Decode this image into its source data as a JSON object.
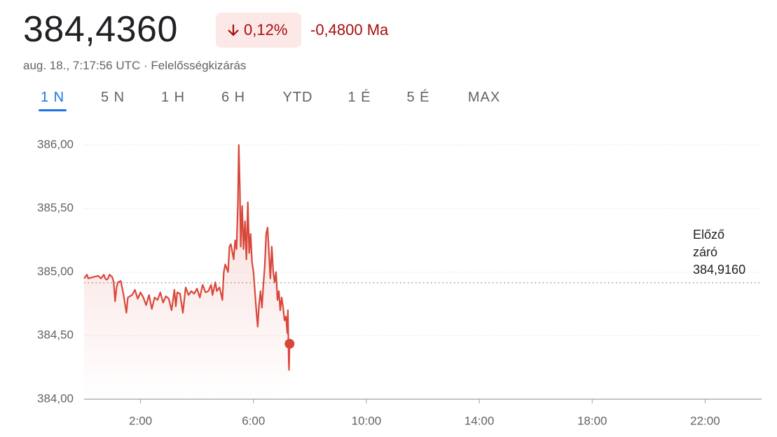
{
  "header": {
    "price": "384,4360",
    "change_percent": "0,12%",
    "change": "-0,4800 Ma",
    "subtitle": "aug. 18., 7:17:56 UTC · Felelősségkizárás"
  },
  "tabs": {
    "items": [
      "1 N",
      "5 N",
      "1 H",
      "6 H",
      "YTD",
      "1 É",
      "5 É",
      "MAX"
    ],
    "active": 0
  },
  "chart_data": {
    "type": "line",
    "xlim": [
      0,
      24
    ],
    "xticks": [
      {
        "value": 2,
        "label": "2:00"
      },
      {
        "value": 6,
        "label": "6:00"
      },
      {
        "value": 10,
        "label": "10:00"
      },
      {
        "value": 14,
        "label": "14:00"
      },
      {
        "value": 18,
        "label": "18:00"
      },
      {
        "value": 22,
        "label": "22:00"
      }
    ],
    "ylim": [
      384,
      386
    ],
    "yticks": [
      {
        "value": 384,
        "label": "384,00"
      },
      {
        "value": 384.5,
        "label": "384,50"
      },
      {
        "value": 385,
        "label": "385,00"
      },
      {
        "value": 385.5,
        "label": "385,50"
      },
      {
        "value": 386,
        "label": "386,00"
      }
    ],
    "grid": true,
    "reference": {
      "title": "Előző záró",
      "value": 384.916,
      "label": "384,9160"
    },
    "last_point_marker": true,
    "series": [
      {
        "color": "#d9473a",
        "x": [
          0.0,
          0.1,
          0.15,
          0.3,
          0.5,
          0.6,
          0.7,
          0.75,
          0.8,
          0.85,
          0.9,
          1.0,
          1.05,
          1.1,
          1.15,
          1.2,
          1.3,
          1.4,
          1.5,
          1.55,
          1.7,
          1.8,
          1.9,
          2.0,
          2.1,
          2.2,
          2.3,
          2.4,
          2.5,
          2.6,
          2.7,
          2.8,
          2.9,
          3.0,
          3.1,
          3.2,
          3.25,
          3.3,
          3.4,
          3.5,
          3.55,
          3.6,
          3.7,
          3.8,
          3.9,
          4.0,
          4.1,
          4.2,
          4.3,
          4.4,
          4.5,
          4.55,
          4.65,
          4.7,
          4.8,
          4.9,
          4.95,
          5.0,
          5.1,
          5.15,
          5.2,
          5.3,
          5.35,
          5.4,
          5.45,
          5.48,
          5.52,
          5.55,
          5.6,
          5.65,
          5.7,
          5.75,
          5.8,
          5.85,
          5.9,
          5.95,
          6.0,
          6.05,
          6.1,
          6.15,
          6.2,
          6.25,
          6.3,
          6.35,
          6.4,
          6.45,
          6.5,
          6.55,
          6.6,
          6.65,
          6.7,
          6.75,
          6.8,
          6.85,
          6.9,
          6.95,
          7.0,
          7.05,
          7.1,
          7.15,
          7.2,
          7.22,
          7.25,
          7.26,
          7.28
        ],
        "values": [
          384.95,
          384.98,
          384.95,
          384.96,
          384.97,
          384.95,
          384.98,
          384.95,
          384.94,
          384.95,
          384.98,
          384.96,
          384.92,
          384.77,
          384.88,
          384.92,
          384.93,
          384.82,
          384.68,
          384.8,
          384.82,
          384.86,
          384.79,
          384.84,
          384.8,
          384.74,
          384.82,
          384.71,
          384.8,
          384.78,
          384.84,
          384.76,
          384.81,
          384.79,
          384.7,
          384.86,
          384.73,
          384.84,
          384.83,
          384.68,
          384.78,
          384.88,
          384.82,
          384.85,
          384.83,
          384.87,
          384.8,
          384.9,
          384.84,
          384.85,
          384.9,
          384.82,
          384.92,
          384.85,
          384.88,
          384.78,
          385.0,
          385.06,
          385.0,
          385.2,
          385.22,
          385.1,
          385.25,
          385.18,
          385.55,
          386.0,
          385.65,
          385.2,
          385.52,
          385.18,
          385.4,
          385.1,
          385.55,
          385.15,
          385.3,
          385.08,
          385.0,
          384.85,
          384.7,
          384.57,
          384.75,
          384.85,
          384.72,
          384.9,
          385.05,
          385.3,
          385.35,
          385.15,
          384.95,
          385.2,
          385.0,
          384.92,
          385.0,
          384.78,
          384.85,
          384.7,
          384.8,
          384.72,
          384.62,
          384.65,
          384.52,
          384.7,
          384.3,
          384.23,
          384.436
        ]
      }
    ]
  }
}
